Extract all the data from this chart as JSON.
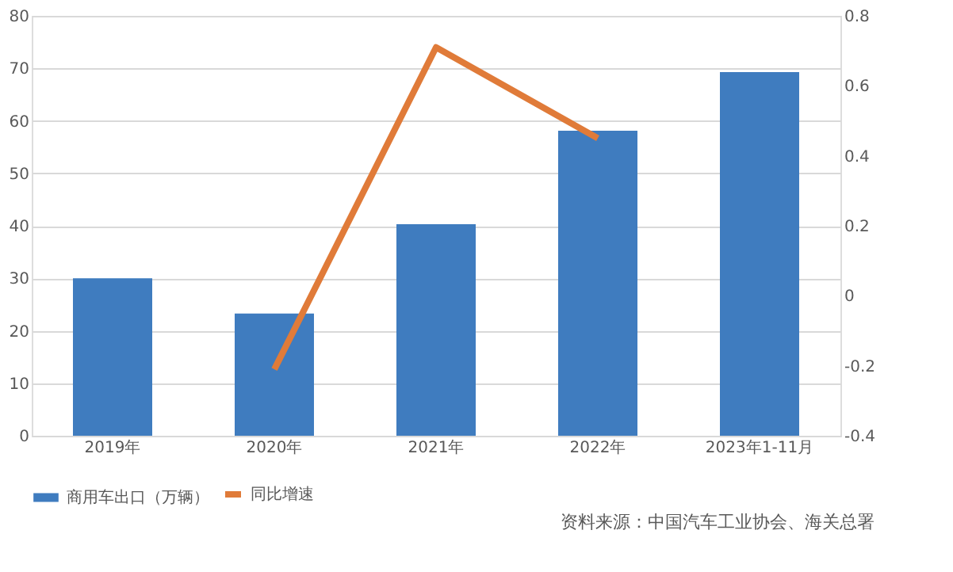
{
  "chart_data": {
    "type": "bar",
    "categories": [
      "2019年",
      "2020年",
      "2021年",
      "2022年",
      "2023年1-11月"
    ],
    "series": [
      {
        "name": "商用车出口（万辆）",
        "color": "#3f7cbf",
        "values": [
          30.0,
          23.3,
          40.3,
          58.1,
          69.3
        ]
      },
      {
        "name": "同比增速",
        "type": "line",
        "axis": "y2",
        "color": "#e07b39",
        "values": [
          null,
          -0.21,
          0.71,
          0.45,
          null
        ]
      }
    ],
    "ylim": [
      0,
      80
    ],
    "yticks": [
      0,
      10,
      20,
      30,
      40,
      50,
      60,
      70,
      80
    ],
    "y2lim": [
      -0.4,
      0.8
    ],
    "y2ticks": [
      -0.4,
      -0.2,
      0,
      0.2,
      0.4,
      0.6,
      0.8
    ],
    "grid": "y",
    "legend": "bottom",
    "line_style": "solid",
    "annotations": [
      "资料来源：中国汽车工业协会、海关总署"
    ]
  }
}
